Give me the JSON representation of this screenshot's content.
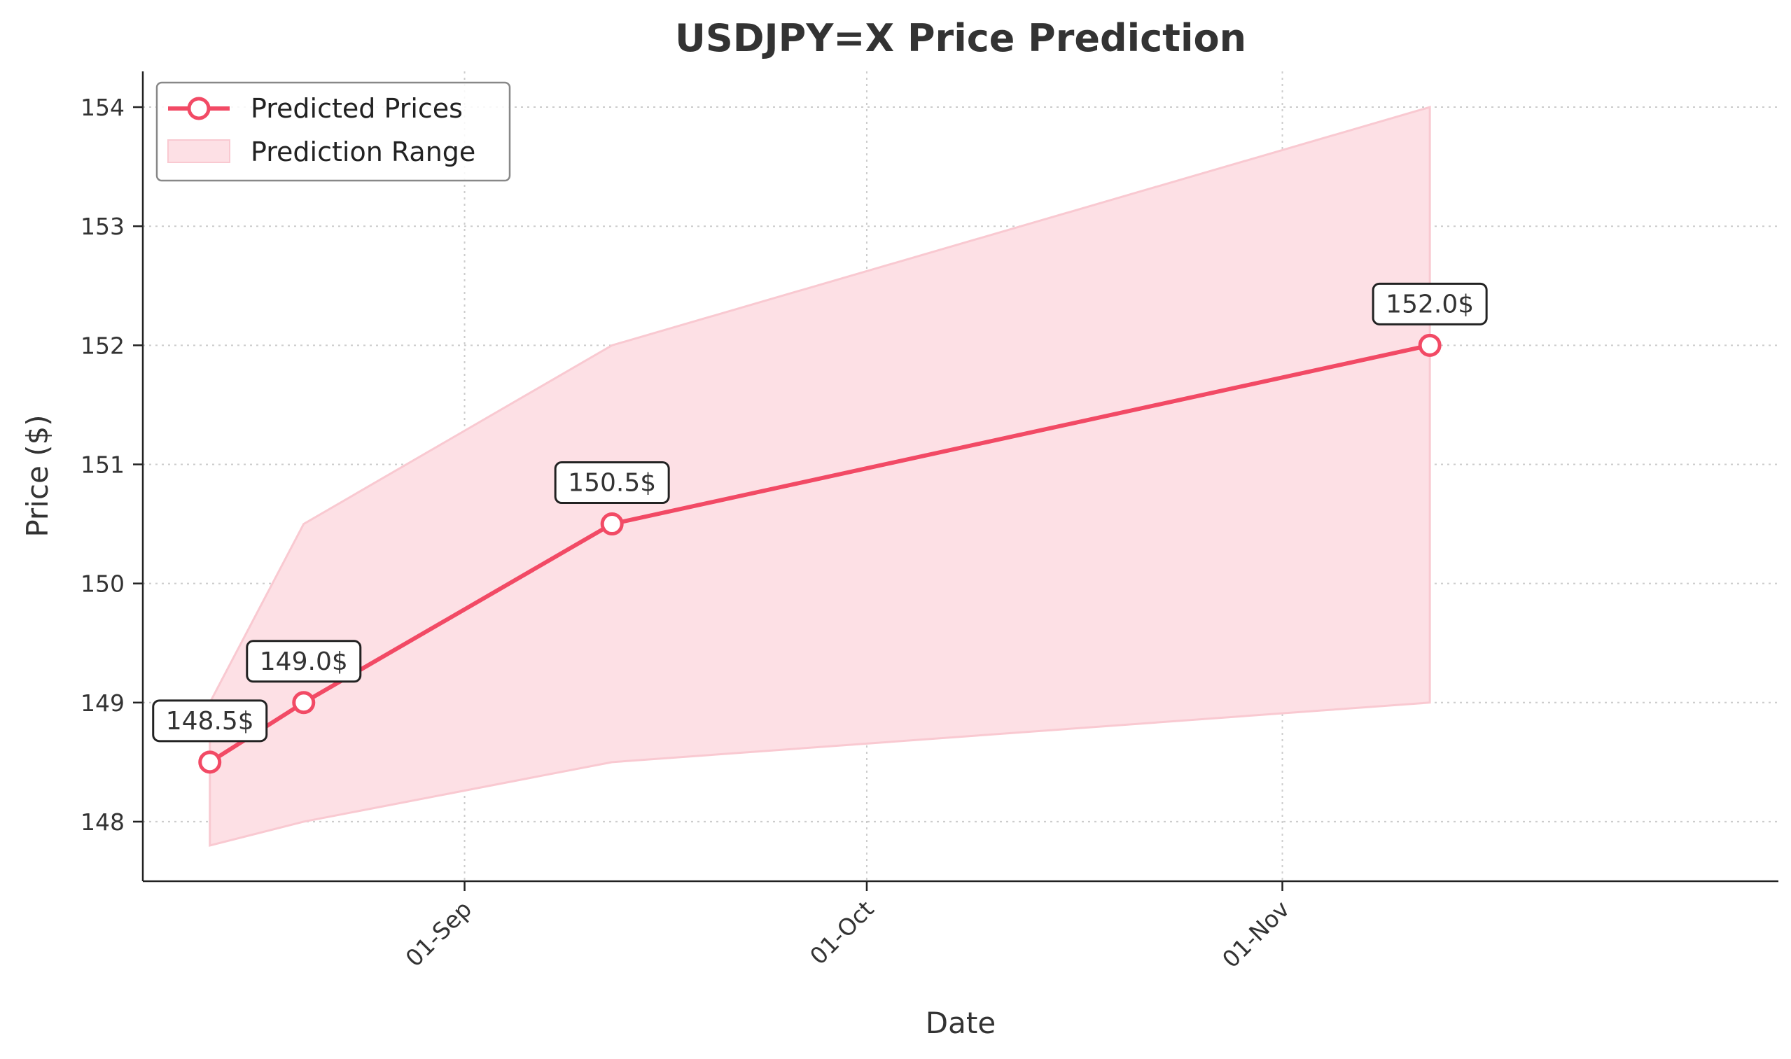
{
  "chart_data": {
    "type": "line",
    "title": "USDJPY=X Price Prediction",
    "xlabel": "Date",
    "ylabel": "Price ($)",
    "x_ticks": [
      {
        "date": "2024-09-01",
        "label": "01-Sep"
      },
      {
        "date": "2024-10-01",
        "label": "01-Oct"
      },
      {
        "date": "2024-11-01",
        "label": "01-Nov"
      }
    ],
    "xlim": [
      "2024-08-08",
      "2024-12-08"
    ],
    "y_ticks": [
      148,
      149,
      150,
      151,
      152,
      153,
      154
    ],
    "ylim": [
      147.5,
      154.3
    ],
    "grid": true,
    "legend_position": "top-left",
    "series": [
      {
        "name": "Predicted Prices",
        "kind": "line-marker",
        "color": "#f24a65",
        "points": [
          {
            "date": "2024-08-13",
            "value": 148.5,
            "label": "148.5$"
          },
          {
            "date": "2024-08-20",
            "value": 149.0,
            "label": "149.0$"
          },
          {
            "date": "2024-09-12",
            "value": 150.5,
            "label": "150.5$"
          },
          {
            "date": "2024-11-12",
            "value": 152.0,
            "label": "152.0$"
          }
        ]
      },
      {
        "name": "Prediction Range",
        "kind": "band",
        "color": "#fde0e5",
        "edge_color": "#f9c9d1",
        "points": [
          {
            "date": "2024-08-13",
            "low": 147.8,
            "high": 149.0
          },
          {
            "date": "2024-08-20",
            "low": 148.0,
            "high": 150.5
          },
          {
            "date": "2024-09-12",
            "low": 148.5,
            "high": 152.0
          },
          {
            "date": "2024-11-12",
            "low": 149.0,
            "high": 154.0
          }
        ]
      }
    ]
  }
}
